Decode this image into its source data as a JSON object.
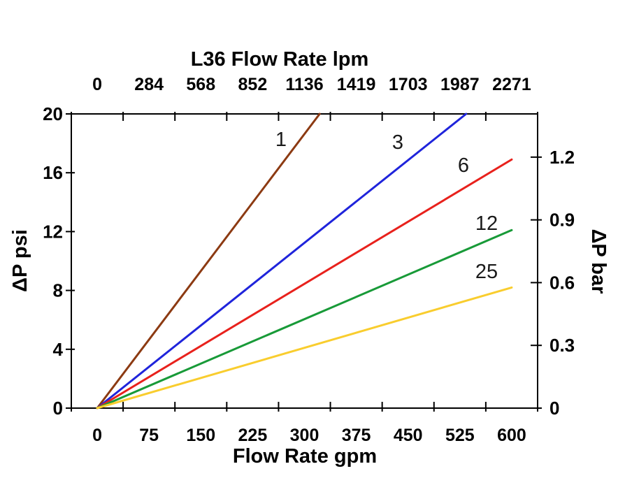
{
  "chart_data": {
    "type": "line",
    "title": "L36  Flow Rate lpm",
    "top_axis": {
      "tick_labels": [
        "0",
        "284",
        "568",
        "852",
        "1136",
        "1419",
        "1703",
        "1987",
        "2271"
      ],
      "units": "lpm"
    },
    "bottom_axis": {
      "label": "Flow Rate gpm",
      "tick_labels": [
        "0",
        "75",
        "150",
        "225",
        "300",
        "375",
        "450",
        "525",
        "600"
      ],
      "range_gpm": [
        0,
        600
      ]
    },
    "left_axis": {
      "label": "ΔP psi",
      "tick_labels": [
        "0",
        "4",
        "8",
        "12",
        "16",
        "20"
      ],
      "range_psi": [
        0,
        20
      ]
    },
    "right_axis": {
      "label": "ΔP bar",
      "tick_labels": [
        "0",
        "0.3",
        "0.6",
        "0.9",
        "1.2"
      ]
    },
    "series": [
      {
        "name": "1",
        "color": "#8C3A12",
        "points_gpm_psi": [
          [
            0,
            0
          ],
          [
            322,
            20
          ]
        ]
      },
      {
        "name": "3",
        "color": "#1F24DB",
        "points_gpm_psi": [
          [
            0,
            0
          ],
          [
            534,
            20
          ]
        ]
      },
      {
        "name": "6",
        "color": "#E8211C",
        "points_gpm_psi": [
          [
            0,
            0
          ],
          [
            600,
            16.9
          ]
        ]
      },
      {
        "name": "12",
        "color": "#189A38",
        "points_gpm_psi": [
          [
            0,
            0
          ],
          [
            600,
            12.1
          ]
        ]
      },
      {
        "name": "25",
        "color": "#F9CD2E",
        "points_gpm_psi": [
          [
            0,
            0
          ],
          [
            600,
            8.2
          ]
        ]
      }
    ]
  }
}
